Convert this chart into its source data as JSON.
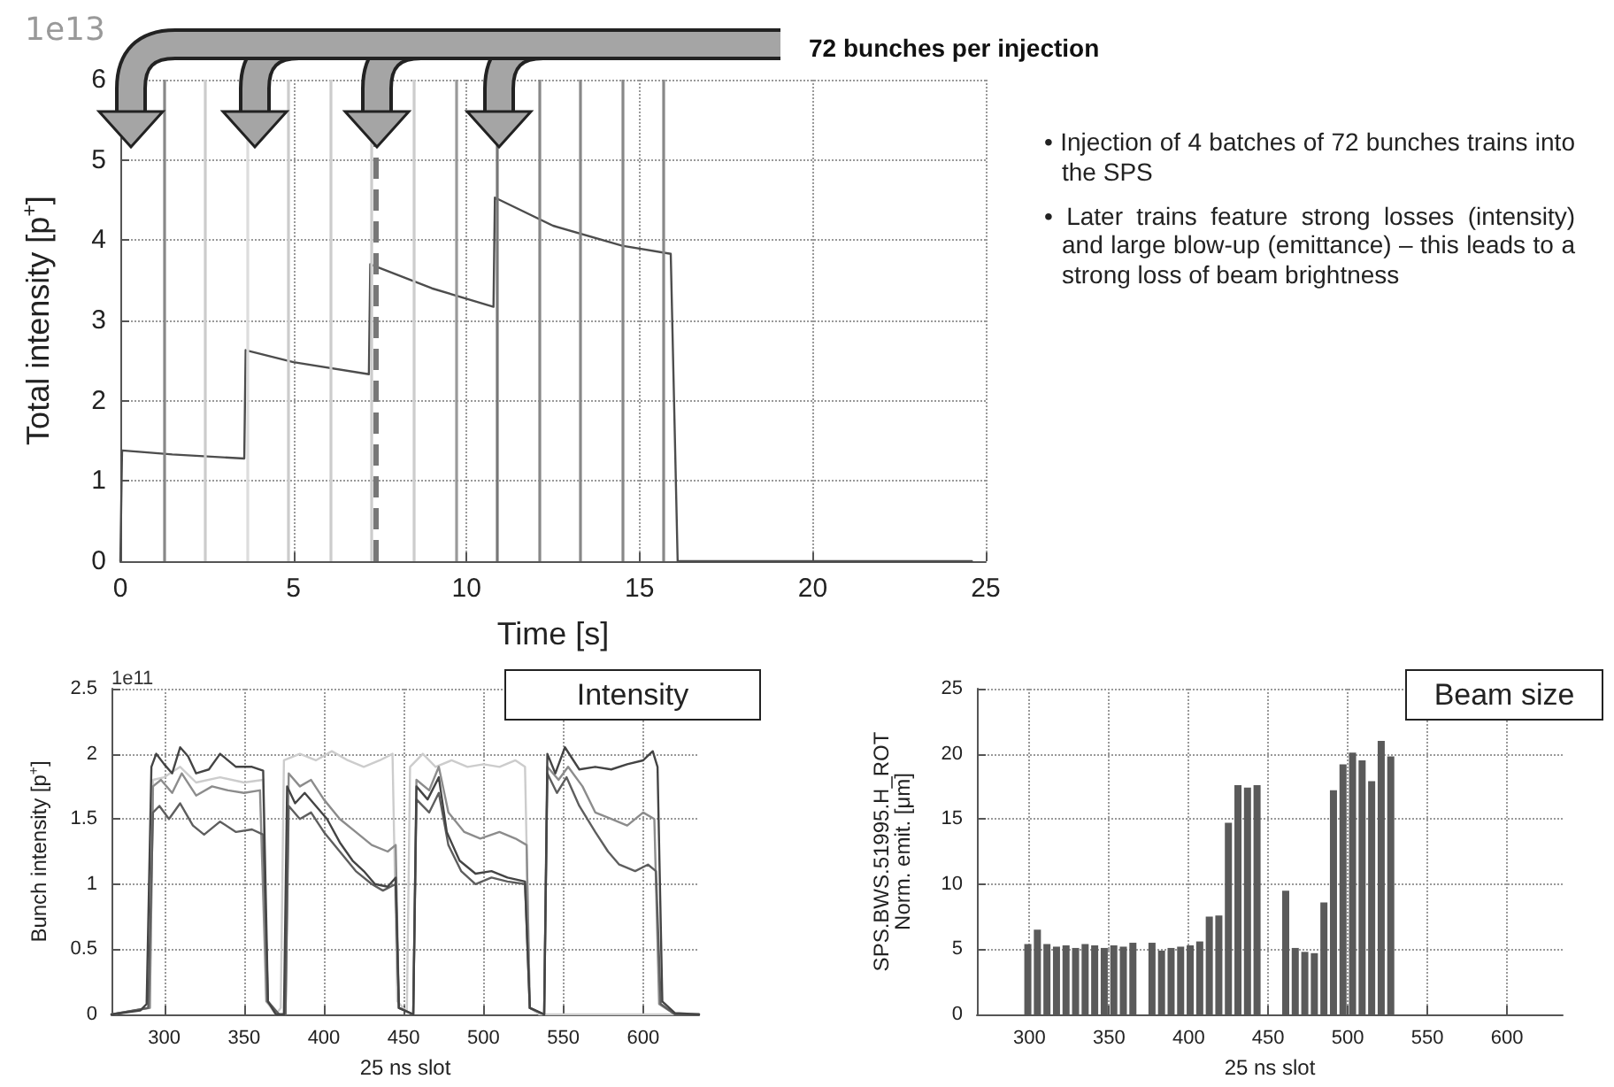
{
  "chart_data": [
    {
      "type": "line",
      "xlabel": "Time [s]",
      "ylabel": "Total intensity [p$^{+}$]",
      "annotations": [
        "1e13",
        "72 bunches per injection"
      ],
      "xlim": [
        0,
        25
      ],
      "xticks": [
        0,
        5,
        10,
        15,
        20,
        25
      ],
      "ylim": [
        0,
        6
      ],
      "yticks": [
        0,
        1,
        2,
        3,
        4,
        5,
        6
      ],
      "grid": true,
      "marker": "none",
      "line_style": "solid",
      "series": [
        {
          "color": "#4d4d4d",
          "x": [
            0,
            0.05,
            1.5,
            3.58,
            3.62,
            5,
            7.18,
            7.22,
            9,
            10.78,
            10.82,
            12.5,
            14.5,
            15.9,
            16.1,
            24.6
          ],
          "values": [
            0,
            1.38,
            1.33,
            1.28,
            2.63,
            2.48,
            2.33,
            3.7,
            3.4,
            3.17,
            4.53,
            4.18,
            3.93,
            3.83,
            0,
            0
          ]
        }
      ],
      "ref_lines": [
        {
          "axis": "x",
          "value": 1.27,
          "color": "#888888"
        },
        {
          "axis": "x",
          "value": 2.46,
          "color": "#cccccc"
        },
        {
          "axis": "x",
          "value": 3.69,
          "color": "#dddddd"
        },
        {
          "axis": "x",
          "value": 4.83,
          "color": "#cccccc"
        },
        {
          "axis": "x",
          "value": 6.06,
          "color": "#cccccc"
        },
        {
          "axis": "x",
          "value": 7.23,
          "color": "#cccccc"
        },
        {
          "axis": "x",
          "value": 7.4,
          "color": "#777777",
          "line_style": "dashed"
        },
        {
          "axis": "x",
          "value": 8.47,
          "color": "#cccccc"
        },
        {
          "axis": "x",
          "value": 9.7,
          "color": "#999999"
        },
        {
          "axis": "x",
          "value": 10.9,
          "color": "#777777"
        },
        {
          "axis": "x",
          "value": 12.1,
          "color": "#888888"
        },
        {
          "axis": "x",
          "value": 13.3,
          "color": "#888888"
        },
        {
          "axis": "x",
          "value": 14.5,
          "color": "#888888"
        },
        {
          "axis": "x",
          "value": 15.7,
          "color": "#888888"
        }
      ]
    },
    {
      "type": "line",
      "xlabel": "25 ns slot",
      "ylabel": "Bunch intensity [p$^{+}$]",
      "annotations": [
        "1e11",
        "Intensity"
      ],
      "xlim": [
        267,
        635
      ],
      "xticks": [
        300,
        350,
        400,
        450,
        500,
        550,
        600
      ],
      "ylim": [
        0,
        2.5
      ],
      "yticks": [
        0,
        0.5,
        1,
        1.5,
        2,
        2.5
      ],
      "grid": true,
      "marker": "none",
      "series": [
        {
          "color": "#cccccc",
          "x": [
            267,
            291,
            293,
            300,
            310,
            320,
            335,
            350,
            362,
            364,
            370,
            373,
            375,
            385,
            395,
            405,
            415,
            425,
            435,
            443,
            446,
            452,
            454,
            462,
            470,
            480,
            490,
            500,
            510,
            520,
            526,
            529,
            535,
            635
          ],
          "values": [
            0,
            0.05,
            1.8,
            1.82,
            1.9,
            1.78,
            1.82,
            1.78,
            1.8,
            0.1,
            0,
            0.05,
            1.95,
            2.0,
            1.95,
            2.02,
            1.95,
            1.9,
            1.95,
            2.0,
            0.1,
            0.02,
            1.9,
            2.0,
            1.9,
            1.95,
            1.9,
            1.92,
            1.9,
            1.95,
            1.9,
            0.05,
            0,
            0
          ]
        },
        {
          "color": "#8c8c8c",
          "x": [
            267,
            291,
            293,
            298,
            305,
            311,
            320,
            330,
            340,
            350,
            360,
            364,
            372,
            376,
            378,
            385,
            392,
            400,
            410,
            420,
            430,
            440,
            445,
            447,
            456,
            458,
            466,
            472,
            478,
            488,
            498,
            510,
            520,
            527,
            529,
            538,
            540,
            547,
            553,
            562,
            570,
            580,
            590,
            600,
            607,
            610,
            620,
            635
          ],
          "values": [
            0,
            0.05,
            1.75,
            1.8,
            1.7,
            1.85,
            1.68,
            1.75,
            1.72,
            1.7,
            1.72,
            0.1,
            0,
            0,
            1.85,
            1.75,
            1.8,
            1.65,
            1.5,
            1.4,
            1.3,
            1.25,
            1.3,
            0.05,
            0,
            1.8,
            1.72,
            1.9,
            1.55,
            1.4,
            1.35,
            1.4,
            1.35,
            1.3,
            0.05,
            0,
            1.9,
            1.8,
            1.9,
            1.75,
            1.55,
            1.5,
            1.45,
            1.55,
            1.5,
            0.08,
            0,
            0
          ]
        },
        {
          "color": "#5e5e5e",
          "x": [
            267,
            290,
            293,
            297,
            303,
            310,
            318,
            325,
            335,
            345,
            355,
            362,
            365,
            372,
            376,
            378,
            385,
            392,
            400,
            410,
            420,
            430,
            437,
            445,
            447,
            456,
            458,
            466,
            472,
            478,
            486,
            495,
            505,
            515,
            526,
            529,
            538,
            540,
            546,
            552,
            560,
            570,
            578,
            585,
            595,
            603,
            608,
            611,
            620,
            635
          ],
          "values": [
            0,
            0.05,
            1.55,
            1.6,
            1.5,
            1.62,
            1.45,
            1.38,
            1.48,
            1.4,
            1.42,
            1.38,
            0.1,
            0,
            0,
            1.6,
            1.5,
            1.55,
            1.4,
            1.25,
            1.1,
            1.0,
            0.95,
            1.0,
            0.05,
            0,
            1.65,
            1.55,
            1.7,
            1.3,
            1.1,
            1.0,
            1.05,
            1.02,
            1.0,
            0.05,
            0,
            1.85,
            1.7,
            1.82,
            1.6,
            1.4,
            1.25,
            1.15,
            1.1,
            1.15,
            1.1,
            0.08,
            0,
            0
          ]
        },
        {
          "color": "#444444",
          "x": [
            267,
            285,
            289,
            292,
            295,
            300,
            305,
            310,
            315,
            320,
            328,
            335,
            345,
            355,
            362,
            365,
            370,
            375,
            377,
            382,
            388,
            395,
            402,
            410,
            418,
            425,
            432,
            440,
            445,
            447,
            456,
            458,
            465,
            472,
            477,
            485,
            495,
            505,
            515,
            526,
            529,
            538,
            540,
            545,
            551,
            560,
            570,
            580,
            590,
            600,
            606,
            609,
            612,
            620,
            635
          ],
          "values": [
            0,
            0.03,
            0.08,
            1.9,
            2.0,
            1.92,
            1.85,
            2.05,
            1.98,
            1.85,
            1.88,
            2.0,
            1.9,
            1.9,
            1.87,
            0.1,
            0,
            0,
            1.75,
            1.62,
            1.7,
            1.6,
            1.5,
            1.32,
            1.18,
            1.1,
            1.0,
            0.98,
            1.05,
            0.05,
            0,
            1.75,
            1.65,
            1.82,
            1.4,
            1.18,
            1.08,
            1.1,
            1.05,
            1.02,
            0.05,
            0,
            2.0,
            1.85,
            2.05,
            1.88,
            1.9,
            1.88,
            1.92,
            1.95,
            2.02,
            1.9,
            0.1,
            0.01,
            0
          ]
        }
      ]
    },
    {
      "type": "bar",
      "xlabel": "25 ns slot",
      "ylabel": "SPS.BWS.51995.H_ROT\nNorm. emit. [μm]",
      "annotations": [
        "Beam size"
      ],
      "xlim": [
        267,
        635
      ],
      "xticks": [
        300,
        350,
        400,
        450,
        500,
        550,
        600
      ],
      "ylim": [
        0,
        25
      ],
      "yticks": [
        0,
        5,
        10,
        15,
        20,
        25
      ],
      "grid": true,
      "x": [
        299,
        305,
        311,
        317,
        323,
        329,
        335,
        341,
        347,
        353,
        359,
        365,
        377,
        383,
        389,
        395,
        401,
        407,
        413,
        419,
        425,
        431,
        437,
        443,
        461,
        467,
        473,
        479,
        485,
        491,
        497,
        503,
        509,
        515,
        521,
        527
      ],
      "series": [
        {
          "color": "#5a5a5a",
          "values": [
            5.4,
            6.5,
            5.4,
            5.2,
            5.3,
            5.1,
            5.4,
            5.3,
            5.1,
            5.3,
            5.2,
            5.5,
            5.5,
            4.9,
            5.1,
            5.2,
            5.3,
            5.6,
            7.5,
            7.6,
            14.7,
            17.6,
            17.4,
            17.6,
            9.5,
            5.1,
            4.8,
            4.7,
            8.6,
            17.2,
            19.2,
            20.1,
            19.5,
            17.9,
            21,
            19.8
          ]
        }
      ]
    },
    {
      "type": "other",
      "annotations": [
        "• Injection of 4 batches of 72 bunches trains into the SPS",
        "• Later trains feature strong losses (intensity) and large blow-up (emittance) – this leads to a strong loss of beam brightness"
      ]
    }
  ]
}
